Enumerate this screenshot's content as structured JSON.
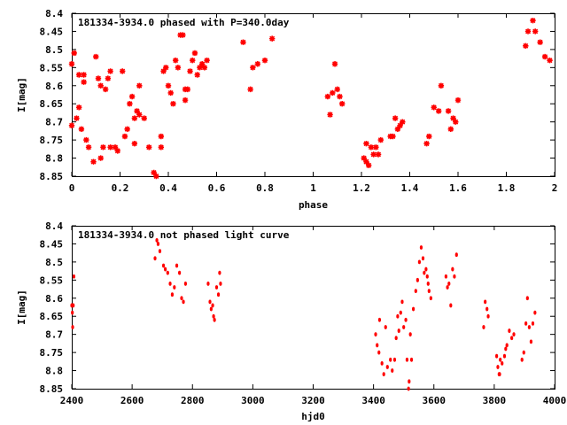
{
  "chart_data": [
    {
      "type": "scatter",
      "title": "181334-3934.0 phased with P=340.0day",
      "xlabel": "phase",
      "ylabel": "I[mag]",
      "xlim": [
        0,
        2
      ],
      "ylim": [
        8.85,
        8.4
      ],
      "y_inverted": true,
      "grid": false,
      "marker_color": "#ff0000",
      "x_ticks": [
        "0",
        "0.2",
        "0.4",
        "0.6",
        "0.8",
        "1",
        "1.2",
        "1.4",
        "1.6",
        "1.8",
        "2"
      ],
      "y_ticks": [
        "8.4",
        "8.45",
        "8.5",
        "8.55",
        "8.6",
        "8.65",
        "8.7",
        "8.75",
        "8.8",
        "8.85"
      ],
      "points": [
        [
          0.0,
          8.54
        ],
        [
          0.0,
          8.71
        ],
        [
          0.01,
          8.51
        ],
        [
          0.02,
          8.69
        ],
        [
          0.03,
          8.66
        ],
        [
          0.03,
          8.57
        ],
        [
          0.04,
          8.72
        ],
        [
          0.05,
          8.59
        ],
        [
          0.05,
          8.57
        ],
        [
          0.06,
          8.75
        ],
        [
          0.07,
          8.77
        ],
        [
          0.09,
          8.81
        ],
        [
          0.1,
          8.52
        ],
        [
          0.11,
          8.58
        ],
        [
          0.12,
          8.6
        ],
        [
          0.12,
          8.8
        ],
        [
          0.13,
          8.77
        ],
        [
          0.14,
          8.61
        ],
        [
          0.15,
          8.58
        ],
        [
          0.16,
          8.56
        ],
        [
          0.16,
          8.77
        ],
        [
          0.18,
          8.77
        ],
        [
          0.19,
          8.78
        ],
        [
          0.21,
          8.56
        ],
        [
          0.22,
          8.74
        ],
        [
          0.23,
          8.72
        ],
        [
          0.24,
          8.65
        ],
        [
          0.25,
          8.63
        ],
        [
          0.26,
          8.69
        ],
        [
          0.26,
          8.76
        ],
        [
          0.27,
          8.67
        ],
        [
          0.28,
          8.6
        ],
        [
          0.28,
          8.68
        ],
        [
          0.3,
          8.69
        ],
        [
          0.32,
          8.77
        ],
        [
          0.34,
          8.84
        ],
        [
          0.35,
          8.85
        ],
        [
          0.37,
          8.74
        ],
        [
          0.37,
          8.77
        ],
        [
          0.38,
          8.56
        ],
        [
          0.39,
          8.55
        ],
        [
          0.4,
          8.6
        ],
        [
          0.41,
          8.62
        ],
        [
          0.42,
          8.65
        ],
        [
          0.43,
          8.53
        ],
        [
          0.44,
          8.55
        ],
        [
          0.45,
          8.46
        ],
        [
          0.46,
          8.46
        ],
        [
          0.47,
          8.64
        ],
        [
          0.47,
          8.61
        ],
        [
          0.48,
          8.61
        ],
        [
          0.49,
          8.56
        ],
        [
          0.5,
          8.53
        ],
        [
          0.51,
          8.51
        ],
        [
          0.52,
          8.57
        ],
        [
          0.53,
          8.55
        ],
        [
          0.54,
          8.54
        ],
        [
          0.55,
          8.55
        ],
        [
          0.56,
          8.53
        ],
        [
          0.71,
          8.48
        ],
        [
          0.74,
          8.61
        ],
        [
          0.75,
          8.55
        ],
        [
          0.77,
          8.54
        ],
        [
          0.8,
          8.53
        ],
        [
          0.83,
          8.47
        ],
        [
          1.06,
          8.63
        ],
        [
          1.07,
          8.68
        ],
        [
          1.08,
          8.62
        ],
        [
          1.09,
          8.54
        ],
        [
          1.1,
          8.61
        ],
        [
          1.11,
          8.63
        ],
        [
          1.12,
          8.65
        ],
        [
          1.21,
          8.8
        ],
        [
          1.22,
          8.81
        ],
        [
          1.22,
          8.76
        ],
        [
          1.23,
          8.82
        ],
        [
          1.24,
          8.77
        ],
        [
          1.25,
          8.79
        ],
        [
          1.26,
          8.77
        ],
        [
          1.27,
          8.79
        ],
        [
          1.28,
          8.75
        ],
        [
          1.32,
          8.74
        ],
        [
          1.33,
          8.74
        ],
        [
          1.34,
          8.69
        ],
        [
          1.35,
          8.72
        ],
        [
          1.36,
          8.71
        ],
        [
          1.37,
          8.7
        ],
        [
          1.47,
          8.76
        ],
        [
          1.48,
          8.74
        ],
        [
          1.5,
          8.66
        ],
        [
          1.52,
          8.67
        ],
        [
          1.53,
          8.6
        ],
        [
          1.56,
          8.67
        ],
        [
          1.57,
          8.72
        ],
        [
          1.58,
          8.69
        ],
        [
          1.59,
          8.7
        ],
        [
          1.6,
          8.64
        ],
        [
          1.88,
          8.49
        ],
        [
          1.89,
          8.45
        ],
        [
          1.91,
          8.42
        ],
        [
          1.92,
          8.45
        ],
        [
          1.94,
          8.48
        ],
        [
          1.96,
          8.52
        ],
        [
          1.98,
          8.53
        ]
      ]
    },
    {
      "type": "scatter",
      "title": "181334-3934.0 not phased light curve",
      "xlabel": "hjd0",
      "ylabel": "I[mag]",
      "xlim": [
        2400,
        4000
      ],
      "ylim": [
        8.85,
        8.4
      ],
      "y_inverted": true,
      "grid": false,
      "marker_color": "#ff0000",
      "x_ticks": [
        "2400",
        "2600",
        "2800",
        "3000",
        "3200",
        "3400",
        "3600",
        "3800",
        "4000"
      ],
      "y_ticks": [
        "8.4",
        "8.45",
        "8.5",
        "8.55",
        "8.6",
        "8.65",
        "8.7",
        "8.75",
        "8.8",
        "8.85"
      ],
      "points": [
        [
          2400,
          8.62
        ],
        [
          2402,
          8.64
        ],
        [
          2403,
          8.68
        ],
        [
          2405,
          8.62
        ],
        [
          2407,
          8.54
        ],
        [
          2676,
          8.49
        ],
        [
          2682,
          8.44
        ],
        [
          2686,
          8.45
        ],
        [
          2692,
          8.47
        ],
        [
          2704,
          8.51
        ],
        [
          2710,
          8.52
        ],
        [
          2718,
          8.53
        ],
        [
          2726,
          8.56
        ],
        [
          2733,
          8.59
        ],
        [
          2740,
          8.57
        ],
        [
          2748,
          8.51
        ],
        [
          2757,
          8.53
        ],
        [
          2764,
          8.6
        ],
        [
          2770,
          8.61
        ],
        [
          2777,
          8.56
        ],
        [
          2852,
          8.56
        ],
        [
          2858,
          8.61
        ],
        [
          2862,
          8.63
        ],
        [
          2867,
          8.62
        ],
        [
          2870,
          8.65
        ],
        [
          2873,
          8.66
        ],
        [
          2880,
          8.57
        ],
        [
          2886,
          8.59
        ],
        [
          2890,
          8.53
        ],
        [
          2893,
          8.56
        ],
        [
          3407,
          8.7
        ],
        [
          3412,
          8.73
        ],
        [
          3418,
          8.75
        ],
        [
          3420,
          8.66
        ],
        [
          3428,
          8.78
        ],
        [
          3434,
          8.81
        ],
        [
          3440,
          8.68
        ],
        [
          3446,
          8.79
        ],
        [
          3456,
          8.77
        ],
        [
          3462,
          8.8
        ],
        [
          3470,
          8.77
        ],
        [
          3475,
          8.71
        ],
        [
          3480,
          8.65
        ],
        [
          3484,
          8.69
        ],
        [
          3490,
          8.64
        ],
        [
          3495,
          8.61
        ],
        [
          3500,
          8.68
        ],
        [
          3507,
          8.66
        ],
        [
          3511,
          8.77
        ],
        [
          3516,
          8.85
        ],
        [
          3518,
          8.83
        ],
        [
          3522,
          8.7
        ],
        [
          3526,
          8.77
        ],
        [
          3532,
          8.63
        ],
        [
          3540,
          8.58
        ],
        [
          3546,
          8.55
        ],
        [
          3552,
          8.5
        ],
        [
          3558,
          8.46
        ],
        [
          3564,
          8.49
        ],
        [
          3568,
          8.53
        ],
        [
          3574,
          8.52
        ],
        [
          3578,
          8.54
        ],
        [
          3581,
          8.56
        ],
        [
          3584,
          8.58
        ],
        [
          3590,
          8.6
        ],
        [
          3640,
          8.54
        ],
        [
          3645,
          8.57
        ],
        [
          3650,
          8.56
        ],
        [
          3656,
          8.62
        ],
        [
          3662,
          8.52
        ],
        [
          3668,
          8.54
        ],
        [
          3675,
          8.48
        ],
        [
          3765,
          8.68
        ],
        [
          3770,
          8.61
        ],
        [
          3776,
          8.63
        ],
        [
          3780,
          8.65
        ],
        [
          3808,
          8.76
        ],
        [
          3812,
          8.79
        ],
        [
          3816,
          8.81
        ],
        [
          3818,
          8.81
        ],
        [
          3820,
          8.77
        ],
        [
          3826,
          8.78
        ],
        [
          3834,
          8.76
        ],
        [
          3838,
          8.74
        ],
        [
          3842,
          8.73
        ],
        [
          3850,
          8.69
        ],
        [
          3858,
          8.71
        ],
        [
          3865,
          8.7
        ],
        [
          3892,
          8.77
        ],
        [
          3898,
          8.75
        ],
        [
          3905,
          8.67
        ],
        [
          3910,
          8.6
        ],
        [
          3916,
          8.68
        ],
        [
          3922,
          8.72
        ],
        [
          3928,
          8.67
        ],
        [
          3935,
          8.64
        ]
      ]
    }
  ]
}
